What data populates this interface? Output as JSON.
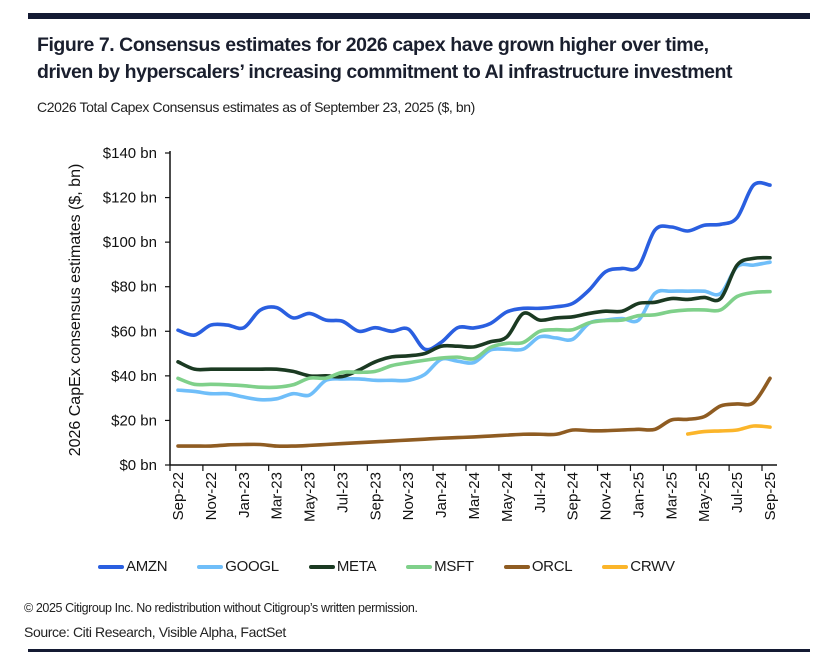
{
  "title_line1": "Figure 7. Consensus estimates for 2026 capex have grown higher over time,",
  "title_line2": "driven by hyperscalers’ increasing commitment to AI infrastructure investment",
  "subtitle": "C2026 Total Capex Consensus estimates as of September 23, 2025 ($, bn)",
  "footer_copyright": "© 2025 Citigroup Inc. No redistribution without Citigroup’s written permission.",
  "footer_source": "Source: Citi Research, Visible Alpha, FactSet",
  "chart_data": {
    "type": "line",
    "ylabel": "2026 CapEx consensus estimates ($, bn)",
    "xlabel": "",
    "ylim": [
      0,
      140
    ],
    "yticks": [
      0,
      20,
      40,
      60,
      80,
      100,
      120,
      140
    ],
    "ytick_labels": [
      "$0 bn",
      "$20 bn",
      "$40 bn",
      "$60 bn",
      "$80 bn",
      "$100 bn",
      "$120 bn",
      "$140 bn"
    ],
    "x_months": [
      "Sep-22",
      "Oct-22",
      "Nov-22",
      "Dec-22",
      "Jan-23",
      "Feb-23",
      "Mar-23",
      "Apr-23",
      "May-23",
      "Jun-23",
      "Jul-23",
      "Aug-23",
      "Sep-23",
      "Oct-23",
      "Nov-23",
      "Dec-23",
      "Jan-24",
      "Feb-24",
      "Mar-24",
      "Apr-24",
      "May-24",
      "Jun-24",
      "Jul-24",
      "Aug-24",
      "Sep-24",
      "Oct-24",
      "Nov-24",
      "Dec-24",
      "Jan-25",
      "Feb-25",
      "Mar-25",
      "Apr-25",
      "May-25",
      "Jun-25",
      "Jul-25",
      "Aug-25",
      "Sep-25"
    ],
    "xtick_labels": [
      "Sep-22",
      "Nov-22",
      "Jan-23",
      "Mar-23",
      "May-23",
      "Jul-23",
      "Sep-23",
      "Nov-23",
      "Jan-24",
      "Mar-24",
      "May-24",
      "Jul-24",
      "Sep-24",
      "Nov-24",
      "Jan-25",
      "Mar-25",
      "May-25",
      "Jul-25",
      "Sep-25"
    ],
    "legend_position": "bottom",
    "grid": false,
    "series": [
      {
        "name": "AMZN",
        "color": "#2a5fe0",
        "values": [
          60.5,
          58.3,
          62.8,
          62.8,
          61.6,
          69.5,
          70.6,
          66,
          68,
          65,
          64.5,
          60,
          61.6,
          60,
          61,
          52,
          55,
          61.6,
          61.5,
          63.5,
          68.7,
          70.3,
          70.3,
          71,
          72.5,
          78.5,
          86.7,
          88.2,
          89,
          105.4,
          106.8,
          105,
          107.6,
          108,
          111,
          125.6,
          125.6
        ]
      },
      {
        "name": "GOOGL",
        "color": "#6fbef9",
        "values": [
          33.6,
          33,
          32,
          32,
          30.5,
          29.3,
          29.7,
          32,
          31.4,
          38,
          38.6,
          38.6,
          38,
          38,
          38,
          40.6,
          47.4,
          46.6,
          46,
          51.6,
          51.9,
          52,
          57.5,
          57,
          56.4,
          63.6,
          65,
          65.7,
          65,
          77,
          78,
          78,
          78,
          77,
          89,
          89.7,
          91
        ]
      },
      {
        "name": "META",
        "color": "#1b3a22",
        "values": [
          46.3,
          43,
          43,
          43,
          43,
          43,
          43,
          42,
          40,
          40,
          39.7,
          42.6,
          46.3,
          48.5,
          49,
          50,
          53.3,
          53.3,
          53,
          55.3,
          57.5,
          68,
          65,
          66,
          66.5,
          68,
          69,
          69,
          72.5,
          73,
          74.7,
          74.3,
          75.2,
          74.7,
          89.7,
          92.7,
          93
        ]
      },
      {
        "name": "MSFT",
        "color": "#7fd08a",
        "values": [
          38.9,
          36.2,
          36.2,
          36,
          35.6,
          34.9,
          34.9,
          36,
          39,
          39,
          41.6,
          41.6,
          42,
          44.6,
          45.9,
          47,
          48,
          48.4,
          47.7,
          52.8,
          54.6,
          55,
          60,
          60.7,
          60.7,
          63.8,
          64.8,
          65,
          67,
          67.4,
          68.9,
          69.6,
          69.6,
          69.6,
          75.6,
          77.4,
          77.8
        ]
      },
      {
        "name": "ORCL",
        "color": "#8f5c22",
        "values": [
          8.5,
          8.5,
          8.5,
          9,
          9.2,
          9.2,
          8.5,
          8.5,
          8.8,
          9.2,
          9.6,
          10,
          10.4,
          10.8,
          11.2,
          11.6,
          12,
          12.3,
          12.6,
          13,
          13.4,
          13.8,
          13.8,
          13.8,
          15.7,
          15.4,
          15.4,
          15.7,
          16,
          16,
          20.2,
          20.5,
          21.7,
          26.5,
          27.4,
          28,
          38.9
        ]
      },
      {
        "name": "CRWV",
        "color": "#fbb52a",
        "values": [
          null,
          null,
          null,
          null,
          null,
          null,
          null,
          null,
          null,
          null,
          null,
          null,
          null,
          null,
          null,
          null,
          null,
          null,
          null,
          null,
          null,
          null,
          null,
          null,
          null,
          null,
          null,
          null,
          null,
          null,
          null,
          13.9,
          15,
          15.3,
          15.7,
          17.5,
          17
        ]
      }
    ]
  }
}
